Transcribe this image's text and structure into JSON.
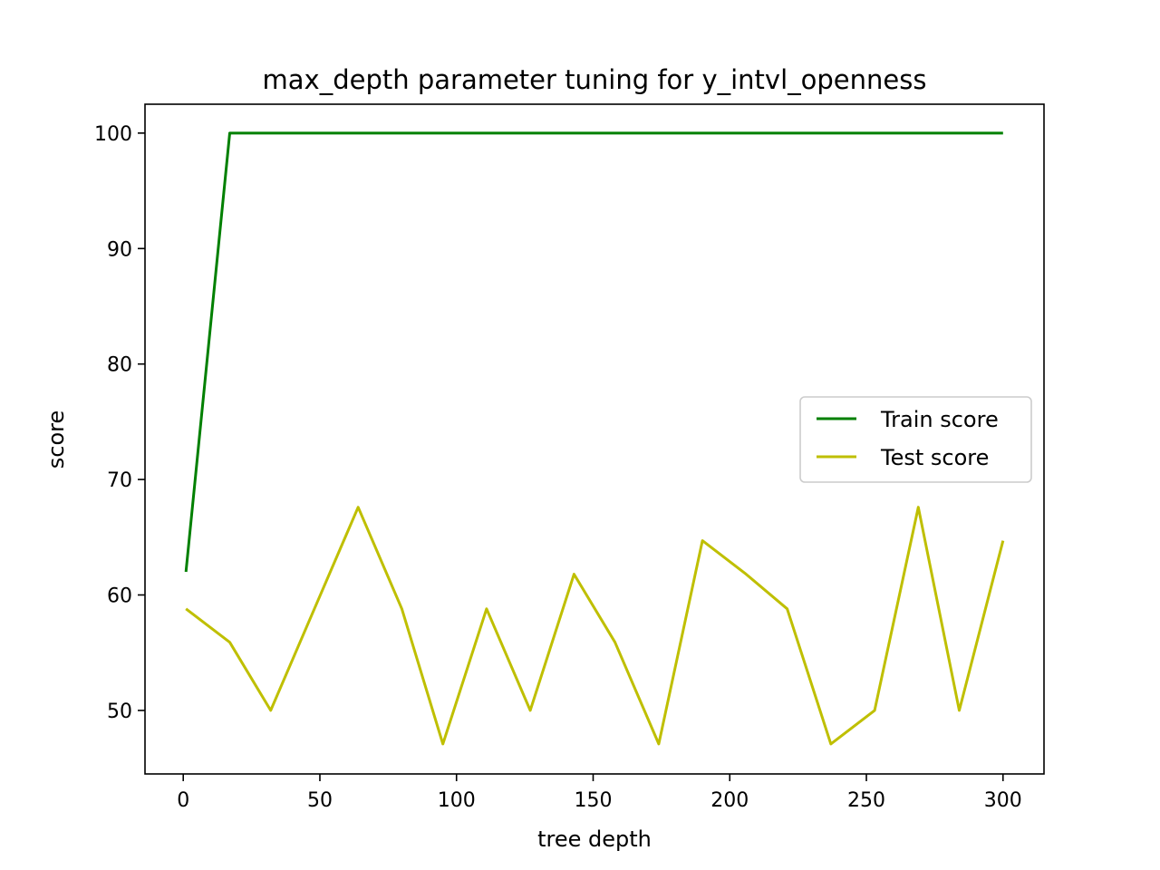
{
  "chart_data": {
    "type": "line",
    "title": "max_depth parameter tuning for y_intvl_openness",
    "xlabel": "tree depth",
    "ylabel": "score",
    "xlim": [
      -14,
      315
    ],
    "ylim": [
      44.5,
      102.5
    ],
    "xticks": [
      0,
      50,
      100,
      150,
      200,
      250,
      300
    ],
    "yticks": [
      50,
      60,
      70,
      80,
      90,
      100
    ],
    "grid": false,
    "legend_position": "center-right",
    "series": [
      {
        "name": "Train score",
        "color": "#008000",
        "x": [
          1,
          17,
          32,
          48,
          64,
          80,
          95,
          111,
          127,
          143,
          158,
          174,
          190,
          206,
          221,
          237,
          253,
          269,
          284,
          300
        ],
        "y": [
          62,
          100,
          100,
          100,
          100,
          100,
          100,
          100,
          100,
          100,
          100,
          100,
          100,
          100,
          100,
          100,
          100,
          100,
          100,
          100
        ]
      },
      {
        "name": "Test score",
        "color": "#bfbf00",
        "x": [
          1,
          17,
          32,
          48,
          64,
          80,
          95,
          111,
          127,
          143,
          158,
          174,
          190,
          206,
          221,
          237,
          253,
          269,
          284,
          300
        ],
        "y": [
          58.8,
          55.9,
          50.0,
          58.8,
          67.6,
          58.8,
          47.1,
          58.8,
          50.0,
          61.8,
          55.9,
          47.1,
          64.7,
          61.8,
          58.8,
          47.1,
          50.0,
          67.6,
          50.0,
          64.7
        ]
      }
    ]
  }
}
